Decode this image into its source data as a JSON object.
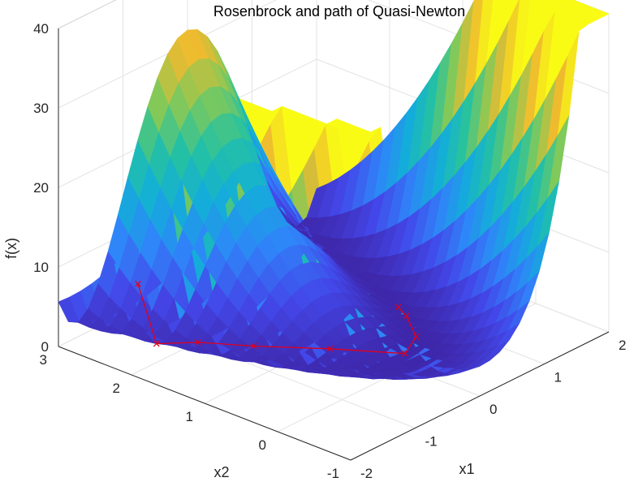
{
  "chart_data": {
    "type": "surface3d",
    "title": "Rosenbrock and path of Quasi-Newton",
    "xlabel": "x1",
    "ylabel": "x2",
    "zlabel": "f(x)",
    "x1_ticks": [
      "-2",
      "-1",
      "0",
      "1",
      "2"
    ],
    "x2_ticks": [
      "-1",
      "0",
      "1",
      "2",
      "3"
    ],
    "z_ticks": [
      "0",
      "10",
      "20",
      "30",
      "40"
    ],
    "x1_range": [
      -2,
      2
    ],
    "x2_range": [
      -1,
      3
    ],
    "z_range": [
      0,
      40
    ],
    "grid": true,
    "colormap": [
      "#3e26a8",
      "#4347e9",
      "#2f85f9",
      "#13aed9",
      "#25c2a1",
      "#86c957",
      "#eeba30",
      "#f9fb15"
    ],
    "path_color": "#e0001c",
    "path": [
      {
        "x1": -1.9,
        "x2": 2.0
      },
      {
        "x1": -1.5,
        "x2": 2.1
      },
      {
        "x1": -1.2,
        "x2": 1.8
      },
      {
        "x1": -0.9,
        "x2": 1.3
      },
      {
        "x1": -0.4,
        "x2": 0.7
      },
      {
        "x1": 0.2,
        "x2": 0.2
      },
      {
        "x1": 0.6,
        "x2": 0.4
      },
      {
        "x1": 0.9,
        "x2": 0.8
      },
      {
        "x1": 1.0,
        "x2": 1.0
      }
    ]
  }
}
